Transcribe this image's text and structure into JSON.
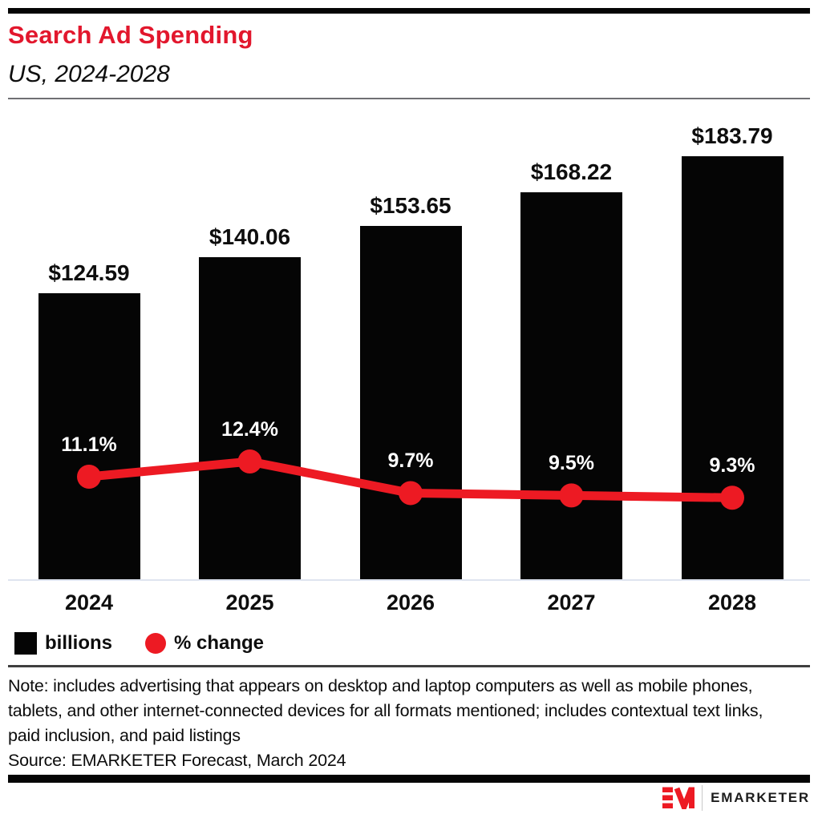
{
  "header": {
    "title": "Search Ad Spending",
    "subtitle": "US, 2024-2028"
  },
  "chart_data": {
    "type": "bar",
    "title": "Search Ad Spending",
    "subtitle": "US, 2024-2028",
    "categories": [
      "2024",
      "2025",
      "2026",
      "2027",
      "2028"
    ],
    "series": [
      {
        "name": "billions",
        "type": "bar",
        "values": [
          124.59,
          140.06,
          153.65,
          168.22,
          183.79
        ],
        "labels": [
          "$124.59",
          "$140.06",
          "$153.65",
          "$168.22",
          "$183.79"
        ],
        "color": "#050505"
      },
      {
        "name": "% change",
        "type": "line",
        "values": [
          11.1,
          12.4,
          9.7,
          9.5,
          9.3
        ],
        "labels": [
          "11.1%",
          "12.4%",
          "9.7%",
          "9.5%",
          "9.3%"
        ],
        "color": "#ed1a23"
      }
    ],
    "xlabel": "",
    "ylabel": "",
    "grid": false,
    "legend_position": "bottom"
  },
  "legend": {
    "items": [
      {
        "label": "billions",
        "swatch": "square",
        "color": "#050505"
      },
      {
        "label": "% change",
        "swatch": "circle",
        "color": "#ed1a23"
      }
    ]
  },
  "note": "Note: includes advertising that appears on desktop and laptop computers as well as mobile phones, tablets, and other internet-connected devices for all formats mentioned; includes contextual text links, paid inclusion, and paid listings",
  "source": "Source: EMARKETER Forecast, March 2024",
  "footer": {
    "brand": "EMARKETER"
  },
  "colors": {
    "title_red": "#e2172d",
    "line_red": "#ed1a23",
    "bar_black": "#050505",
    "baseline": "#dfe4f0",
    "divider_dark": "#3f3f3f",
    "header_rule": "#6f6f73"
  }
}
